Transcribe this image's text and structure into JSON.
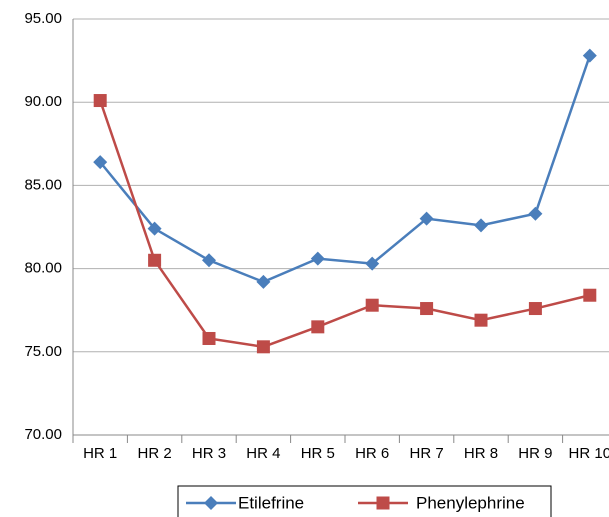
{
  "chart_data": {
    "type": "line",
    "categories": [
      "HR 1",
      "HR 2",
      "HR 3",
      "HR 4",
      "HR 5",
      "HR 6",
      "HR 7",
      "HR 8",
      "HR 9",
      "HR 10"
    ],
    "series": [
      {
        "name": "Etilefrine",
        "color": "#4a7ebb",
        "marker": "diamond",
        "values": [
          86.4,
          82.4,
          80.5,
          79.2,
          80.6,
          80.3,
          83.0,
          82.6,
          83.3,
          92.8
        ]
      },
      {
        "name": "Phenylephrine",
        "color": "#be4b48",
        "marker": "square",
        "values": [
          90.1,
          80.5,
          75.8,
          75.3,
          76.5,
          77.8,
          77.6,
          76.9,
          77.6,
          78.4
        ]
      }
    ],
    "ylim": [
      70,
      95
    ],
    "yticks": [
      {
        "value": 70,
        "label": "70.00"
      },
      {
        "value": 75,
        "label": "75.00"
      },
      {
        "value": 80,
        "label": "80.00"
      },
      {
        "value": 85,
        "label": "85.00"
      },
      {
        "value": 90,
        "label": "90.00"
      },
      {
        "value": 95,
        "label": "95.00"
      }
    ],
    "grid": true,
    "legend": "bottom"
  }
}
